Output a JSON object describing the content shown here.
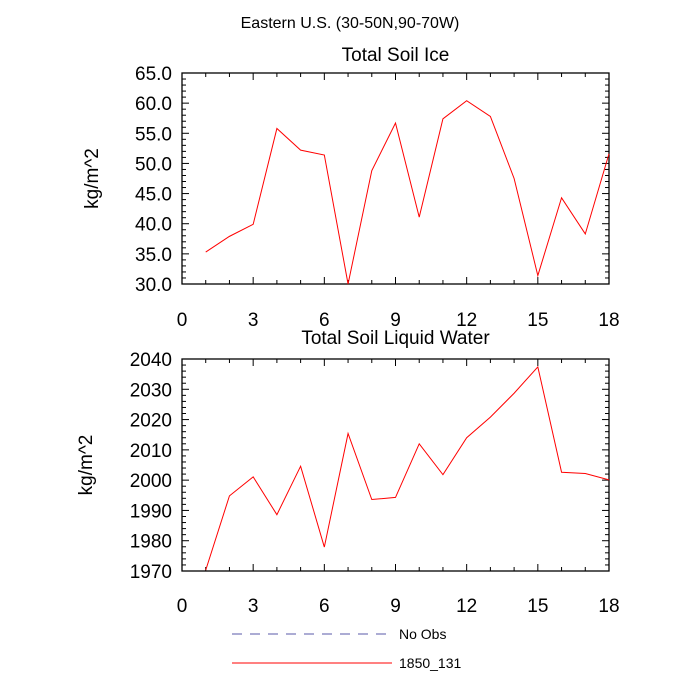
{
  "figure": {
    "suptitle": "Eastern U.S. (30-50N,90-70W)"
  },
  "chart_data": [
    {
      "type": "line",
      "title": "Total Soil Ice",
      "xlabel": "",
      "ylabel": "kg/m^2",
      "xlim": [
        0,
        18
      ],
      "ylim": [
        30,
        65
      ],
      "xticks": [
        0,
        3,
        6,
        9,
        12,
        15,
        18
      ],
      "yticks": [
        30,
        35,
        40,
        45,
        50,
        55,
        60,
        65
      ],
      "ytick_labels": [
        "30.0",
        "35.0",
        "40.0",
        "45.0",
        "50.0",
        "55.0",
        "60.0",
        "65.0"
      ],
      "series": [
        {
          "name": "1850_131",
          "color": "#ff0000",
          "x": [
            1,
            2,
            3,
            4,
            5,
            6,
            7,
            8,
            9,
            10,
            11,
            12,
            13,
            14,
            15,
            16,
            17,
            18
          ],
          "values": [
            35.3,
            37.9,
            39.9,
            55.8,
            52.2,
            51.4,
            30.0,
            48.8,
            56.7,
            41.1,
            57.4,
            60.4,
            57.8,
            47.5,
            31.4,
            44.3,
            38.3,
            51.6
          ]
        }
      ]
    },
    {
      "type": "line",
      "title": "Total Soil Liquid Water",
      "xlabel": "",
      "ylabel": "kg/m^2",
      "xlim": [
        0,
        18
      ],
      "ylim": [
        1970,
        2040
      ],
      "xticks": [
        0,
        3,
        6,
        9,
        12,
        15,
        18
      ],
      "yticks": [
        1970,
        1980,
        1990,
        2000,
        2010,
        2020,
        2030,
        2040
      ],
      "ytick_labels": [
        "1970",
        "1980",
        "1990",
        "2000",
        "2010",
        "2020",
        "2030",
        "2040"
      ],
      "series": [
        {
          "name": "1850_131",
          "color": "#ff0000",
          "x": [
            1,
            2,
            3,
            4,
            5,
            6,
            7,
            8,
            9,
            10,
            11,
            12,
            13,
            14,
            15,
            16,
            17,
            18
          ],
          "values": [
            1970.3,
            1994.8,
            2001.1,
            1988.6,
            2004.6,
            1977.9,
            2015.4,
            1993.6,
            1994.3,
            2012.0,
            2001.8,
            2014.0,
            2020.8,
            2028.7,
            2037.4,
            2002.6,
            2002.2,
            2000.1
          ]
        }
      ]
    }
  ],
  "legend": [
    {
      "label": "No Obs",
      "color": "#5a5aa8",
      "style": "dashed"
    },
    {
      "label": "1850_131",
      "color": "#ff0000",
      "style": "solid"
    }
  ]
}
